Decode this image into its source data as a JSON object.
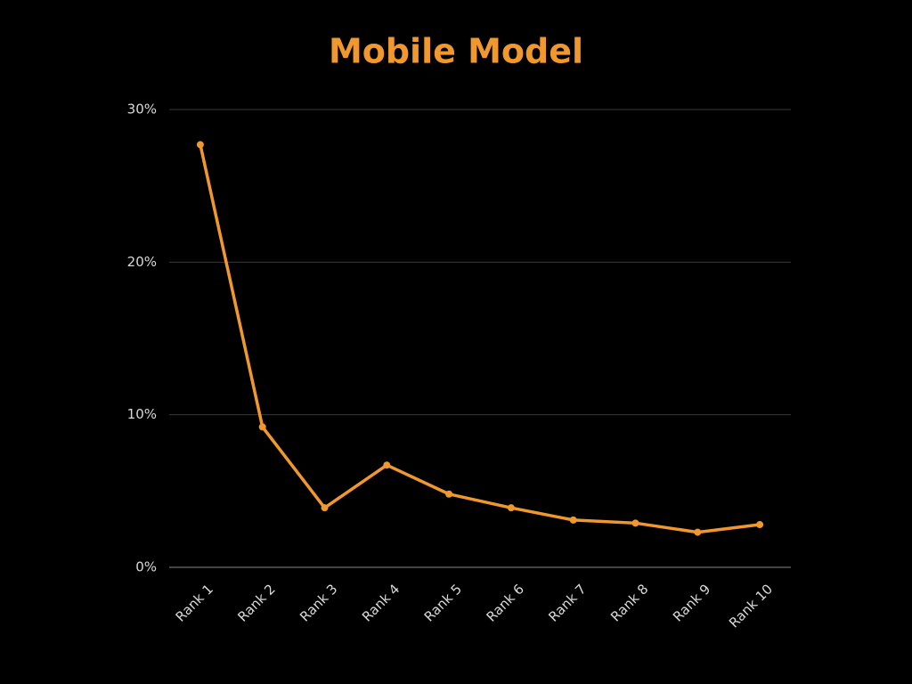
{
  "chart_data": {
    "type": "line",
    "title": "Mobile Model",
    "categories": [
      "Rank 1",
      "Rank 2",
      "Rank 3",
      "Rank 4",
      "Rank 5",
      "Rank 6",
      "Rank 7",
      "Rank 8",
      "Rank 9",
      "Rank 10"
    ],
    "values": [
      27.7,
      9.2,
      3.9,
      6.7,
      4.8,
      3.9,
      3.1,
      2.9,
      2.3,
      2.8
    ],
    "color": "#f0982d",
    "ylim": [
      0,
      30
    ],
    "yticks": [
      {
        "value": 0,
        "label": "0%"
      },
      {
        "value": 10,
        "label": "10%"
      },
      {
        "value": 20,
        "label": "20%"
      },
      {
        "value": 30,
        "label": "30%"
      }
    ],
    "grid": true
  }
}
